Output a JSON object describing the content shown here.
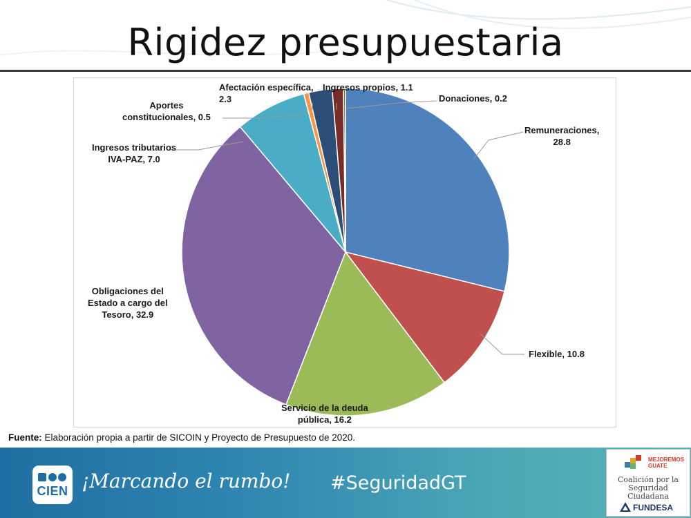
{
  "slide": {
    "title": "Rigidez presupuestaria",
    "source_label": "Fuente:",
    "source_text": "Elaboración propia a partir de SICOIN y Proyecto de Presupuesto de 2020."
  },
  "chart_data": {
    "type": "pie",
    "title": "",
    "slices": [
      {
        "label": "Remuneraciones",
        "value": 28.8,
        "color": "#4f81bd"
      },
      {
        "label": "Flexible",
        "value": 10.8,
        "color": "#c0504d"
      },
      {
        "label": "Servicio de la deuda pública",
        "value": 16.2,
        "color": "#9bbb59"
      },
      {
        "label": "Obligaciones del Estado a cargo del Tesoro",
        "value": 32.9,
        "color": "#8064a2"
      },
      {
        "label": "Ingresos tributarios IVA-PAZ",
        "value": 7.0,
        "color": "#4bacc6"
      },
      {
        "label": "Aportes constitucionales",
        "value": 0.5,
        "color": "#f79646"
      },
      {
        "label": "Afectación específica",
        "value": 2.3,
        "color": "#2c4d75"
      },
      {
        "label": "Ingresos propios",
        "value": 1.1,
        "color": "#772c2a"
      },
      {
        "label": "Donaciones",
        "value": 0.2,
        "color": "#5f7530"
      }
    ],
    "data_labels": [
      {
        "lines": [
          "Remuneraciones,",
          "28.8"
        ]
      },
      {
        "lines": [
          "Flexible,  10.8"
        ]
      },
      {
        "lines": [
          "Servicio de la deuda",
          "pública,  16.2"
        ]
      },
      {
        "lines": [
          "Obligaciones del",
          "Estado a cargo del",
          "Tesoro,  32.9"
        ]
      },
      {
        "lines": [
          "Ingresos tributarios",
          "IVA-PAZ,  7.0"
        ]
      },
      {
        "lines": [
          "Aportes",
          "constitucionales,  0.5"
        ]
      },
      {
        "lines": [
          "Afectación específica,",
          "2.3"
        ]
      },
      {
        "lines": [
          "Ingresos propios,  1.1"
        ]
      },
      {
        "lines": [
          "Donaciones,  0.2"
        ]
      }
    ]
  },
  "footer": {
    "logo_text": "CIEN",
    "slogan": "¡Marcando el rumbo!",
    "hashtag": "#SeguridadGT",
    "partner_brand_line1": "MEJOREMOS",
    "partner_brand_line2": "GUATE",
    "partner_name": "Coalición por la Seguridad Ciudadana",
    "partner_org": "FUNDESA",
    "colors": {
      "band_start": "#1f6ea3",
      "band_end": "#58b3b7"
    }
  }
}
